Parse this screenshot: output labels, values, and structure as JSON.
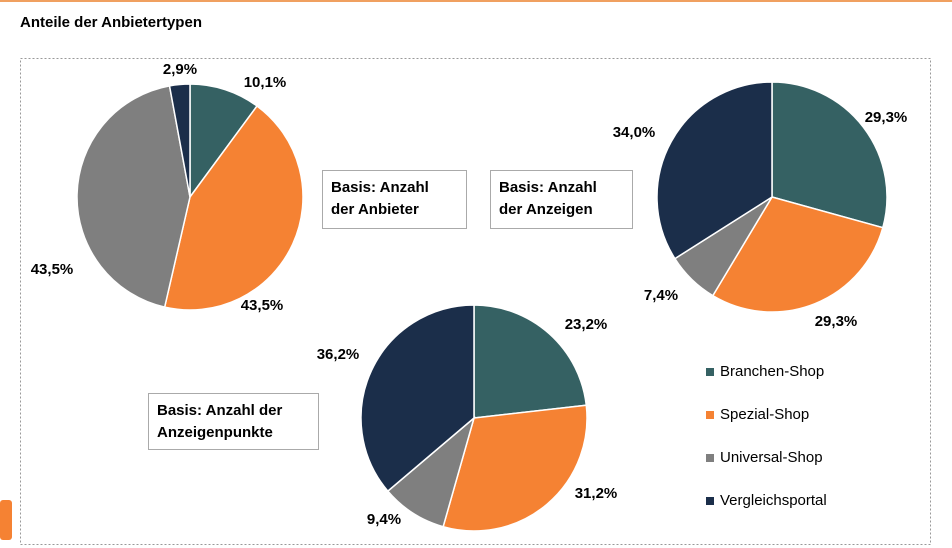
{
  "title": "Anteile der Anbietertypen",
  "legend": {
    "categories": [
      "Branchen-Shop",
      "Spezial-Shop",
      "Universal-Shop",
      "Vergleichsportal"
    ],
    "colors": [
      "#356163",
      "#f58233",
      "#7f7f7f",
      "#1b2e4a"
    ]
  },
  "chart_data": [
    {
      "type": "pie",
      "title_lines": [
        "Basis: Anzahl",
        "der Anbieter"
      ],
      "values": [
        10.1,
        43.5,
        43.5,
        2.9
      ],
      "value_labels": [
        "10,1%",
        "43,5%",
        "43,5%",
        "2,9%"
      ]
    },
    {
      "type": "pie",
      "title_lines": [
        "Basis: Anzahl",
        "der Anzeigen"
      ],
      "values": [
        29.3,
        29.3,
        7.4,
        34.0
      ],
      "value_labels": [
        "29,3%",
        "29,3%",
        "7,4%",
        "34,0%"
      ]
    },
    {
      "type": "pie",
      "title_lines": [
        "Basis: Anzahl der",
        "Anzeigenpunkte"
      ],
      "values": [
        23.2,
        31.2,
        9.4,
        36.2
      ],
      "value_labels": [
        "23,2%",
        "31,2%",
        "9,4%",
        "36,2%"
      ]
    }
  ]
}
